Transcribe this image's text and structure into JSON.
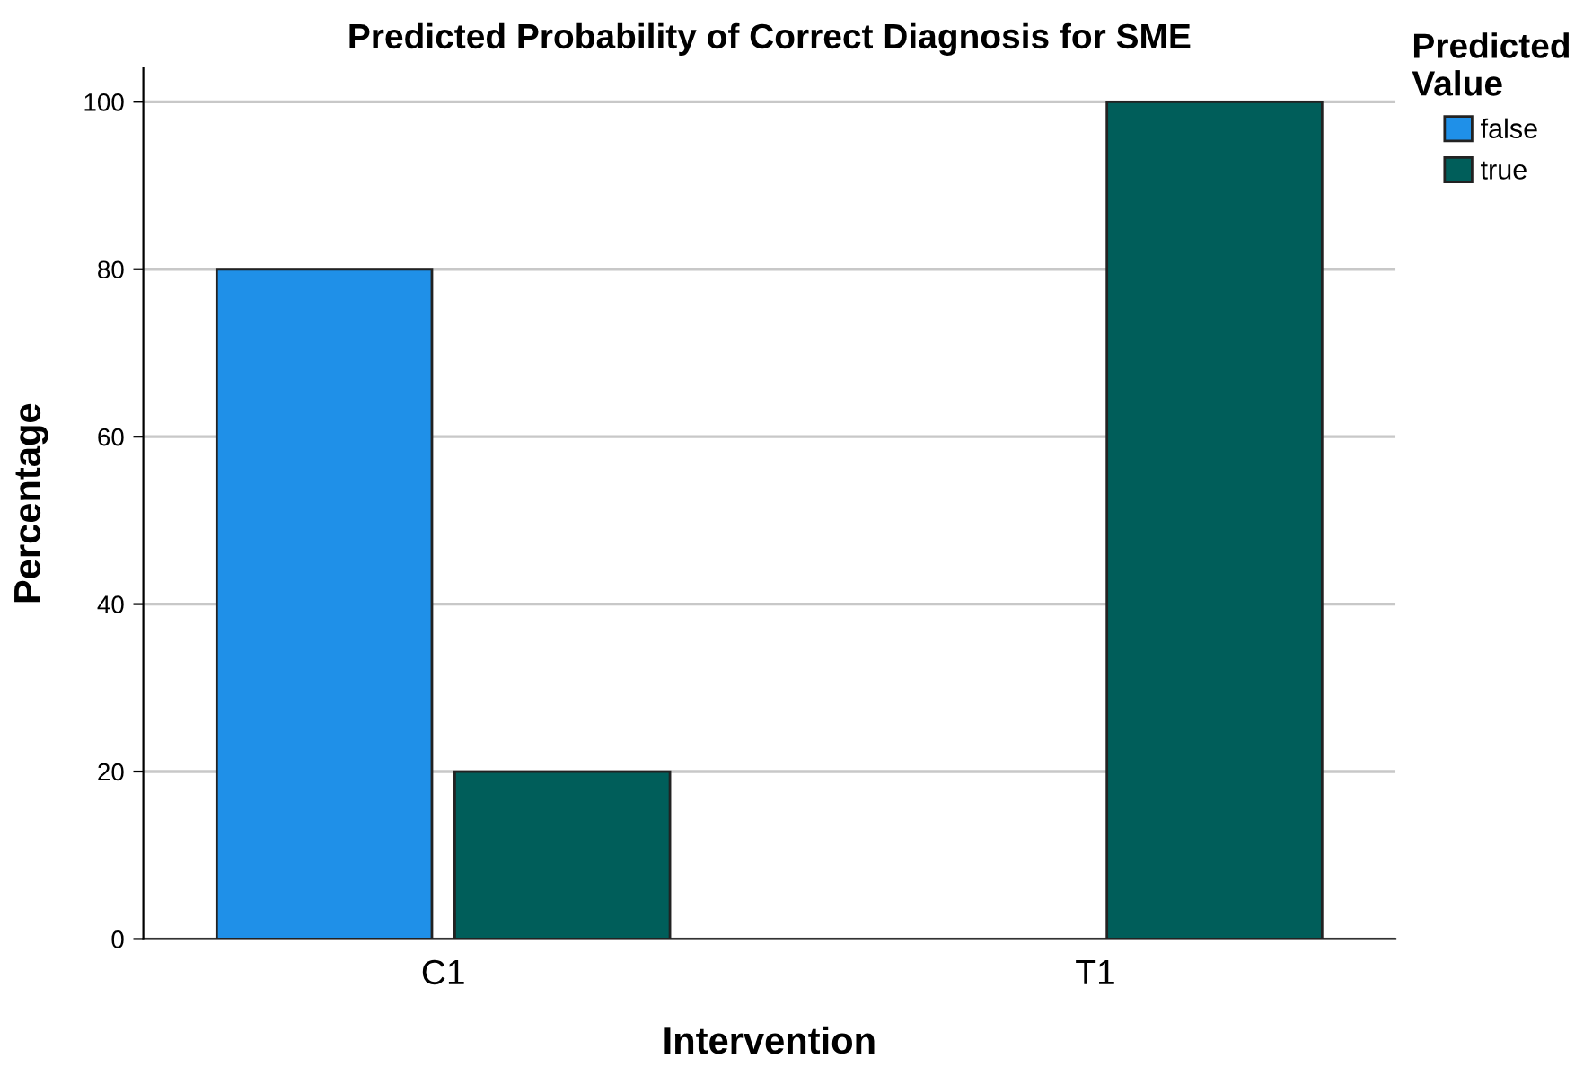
{
  "chart_data": {
    "type": "bar",
    "title": "Predicted Probability of Correct Diagnosis for SME",
    "xlabel": "Intervention",
    "ylabel": "Percentage",
    "legend_title": "Predicted\nValue",
    "categories": [
      "C1",
      "T1"
    ],
    "series": [
      {
        "name": "false",
        "color": "#1f90e8",
        "values": [
          80,
          null
        ]
      },
      {
        "name": "true",
        "color": "#005e5a",
        "values": [
          20,
          100
        ]
      }
    ],
    "ylim": [
      0,
      104
    ],
    "yticks": [
      0,
      20,
      40,
      60,
      80,
      100
    ],
    "grid": "y",
    "legend": "top right"
  }
}
